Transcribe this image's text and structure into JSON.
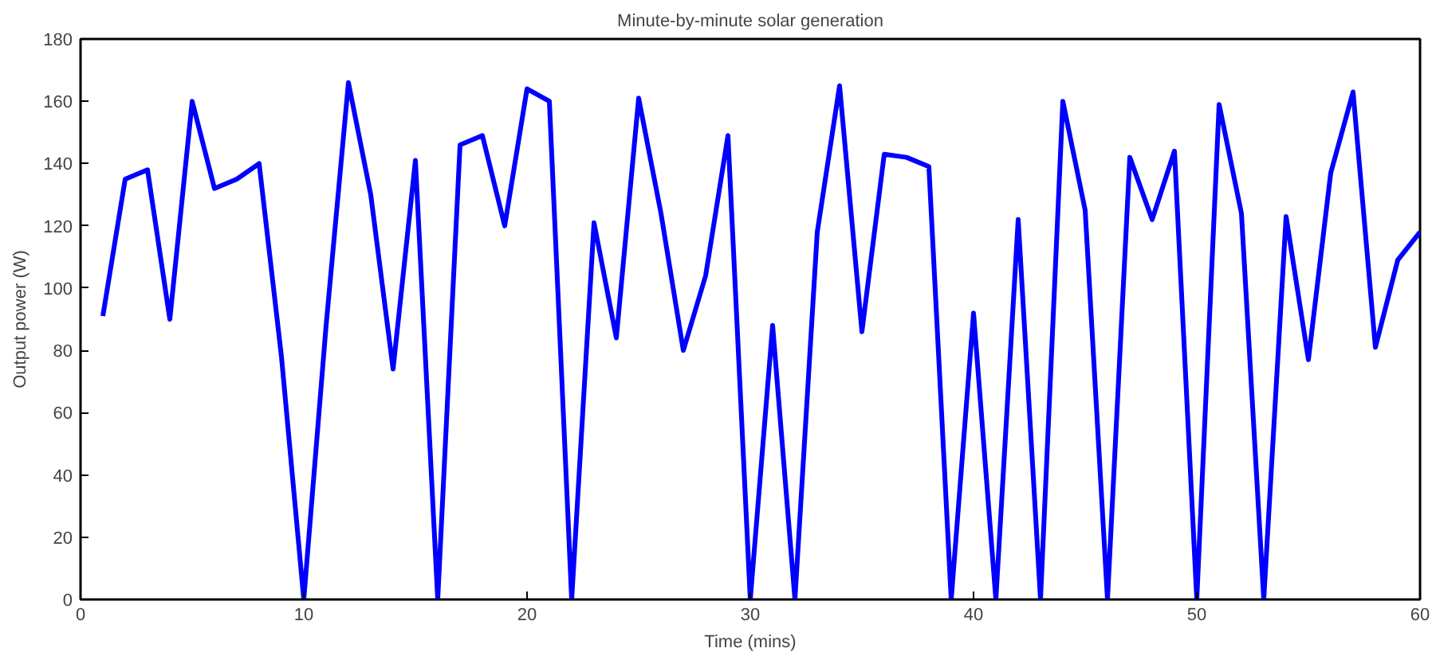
{
  "chart_data": {
    "type": "line",
    "title": "Minute-by-minute solar generation",
    "xlabel": "Time (mins)",
    "ylabel": "Output power (W)",
    "x": [
      1,
      2,
      3,
      4,
      5,
      6,
      7,
      8,
      9,
      10,
      11,
      12,
      13,
      14,
      15,
      16,
      17,
      18,
      19,
      20,
      21,
      22,
      23,
      24,
      25,
      26,
      27,
      28,
      29,
      30,
      31,
      32,
      33,
      34,
      35,
      36,
      37,
      38,
      39,
      40,
      41,
      42,
      43,
      44,
      45,
      46,
      47,
      48,
      49,
      50,
      51,
      52,
      53,
      54,
      55,
      56,
      57,
      58,
      59,
      60
    ],
    "series": [
      {
        "color": "#0000ff",
        "values": [
          91,
          135,
          138,
          90,
          160,
          132,
          135,
          140,
          78,
          0,
          88,
          166,
          130,
          74,
          141,
          0,
          146,
          149,
          120,
          164,
          160,
          0,
          121,
          84,
          161,
          124,
          80,
          104,
          149,
          0,
          88,
          0,
          118,
          165,
          86,
          143,
          142,
          139,
          0,
          92,
          0,
          122,
          0,
          160,
          125,
          0,
          142,
          122,
          144,
          0,
          159,
          124,
          0,
          123,
          77,
          137,
          163,
          81,
          109,
          118
        ]
      }
    ],
    "xlim": [
      0,
      60
    ],
    "xticks": [
      0,
      10,
      20,
      30,
      40,
      50,
      60
    ],
    "ylim": [
      0,
      180
    ],
    "yticks": [
      0,
      20,
      40,
      60,
      80,
      100,
      120,
      140,
      160,
      180
    ],
    "grid": false,
    "marker": "none",
    "line_style": "solid"
  }
}
